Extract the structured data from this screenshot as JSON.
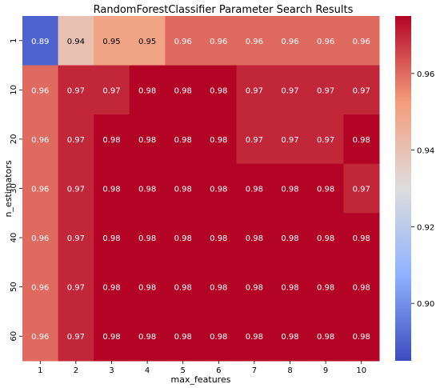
{
  "chart_data": {
    "type": "heatmap",
    "title": "RandomForestClassifier Parameter Search Results",
    "xlabel": "max_features",
    "ylabel": "n_estimators",
    "x_categories": [
      "1",
      "2",
      "3",
      "4",
      "5",
      "6",
      "7",
      "8",
      "9",
      "10"
    ],
    "y_categories": [
      "1",
      "10",
      "20",
      "30",
      "40",
      "50",
      "60"
    ],
    "values": [
      [
        0.89,
        0.94,
        0.95,
        0.95,
        0.96,
        0.96,
        0.96,
        0.96,
        0.96,
        0.96
      ],
      [
        0.96,
        0.97,
        0.97,
        0.98,
        0.98,
        0.98,
        0.97,
        0.97,
        0.97,
        0.97
      ],
      [
        0.96,
        0.97,
        0.98,
        0.98,
        0.98,
        0.98,
        0.97,
        0.97,
        0.97,
        0.98
      ],
      [
        0.96,
        0.97,
        0.98,
        0.98,
        0.98,
        0.98,
        0.98,
        0.98,
        0.98,
        0.97
      ],
      [
        0.96,
        0.97,
        0.98,
        0.98,
        0.98,
        0.98,
        0.98,
        0.98,
        0.98,
        0.98
      ],
      [
        0.96,
        0.97,
        0.98,
        0.98,
        0.98,
        0.98,
        0.98,
        0.98,
        0.98,
        0.98
      ],
      [
        0.96,
        0.97,
        0.98,
        0.98,
        0.98,
        0.98,
        0.98,
        0.98,
        0.98,
        0.98
      ]
    ],
    "colormap": "coolwarm",
    "colorbar": {
      "ticks": [
        "0.90",
        "0.92",
        "0.94",
        "0.96"
      ],
      "range": [
        0.885,
        0.975
      ]
    },
    "annotations": true,
    "grid": false
  }
}
